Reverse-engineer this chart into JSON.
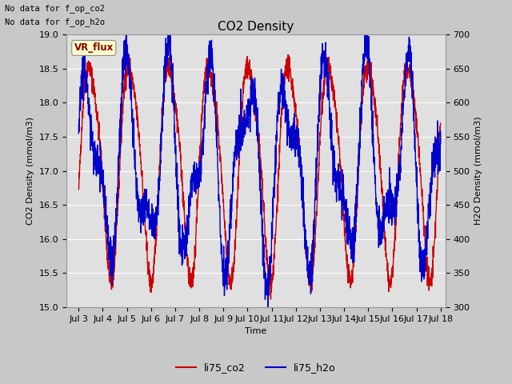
{
  "title": "CO2 Density",
  "xlabel": "Time",
  "ylabel_left": "CO2 Density (mmol/m3)",
  "ylabel_right": "H2O Density (mmol/m3)",
  "top_left_text_line1": "No data for f_op_co2",
  "top_left_text_line2": "No data for f_op_h2o",
  "legend_box_label": "VR_flux",
  "legend_entries": [
    "li75_co2",
    "li75_h2o"
  ],
  "co2_color": "#cc0000",
  "h2o_color": "#0000cc",
  "xtick_labels": [
    "Jul 3",
    "Jul 4",
    "Jul 5",
    "Jul 6",
    "Jul 7",
    "Jul 8",
    "Jul 9",
    "Jul 10",
    "Jul 11",
    "Jul 12",
    "Jul 13",
    "Jul 14",
    "Jul 15",
    "Jul 16",
    "Jul 17",
    "Jul 18"
  ],
  "xtick_positions": [
    3,
    4,
    5,
    6,
    7,
    8,
    9,
    10,
    11,
    12,
    13,
    14,
    15,
    16,
    17,
    18
  ],
  "xlim": [
    2.5,
    18.2
  ],
  "ylim_left": [
    15.0,
    19.0
  ],
  "ylim_right": [
    300,
    700
  ],
  "yticks_left": [
    15.0,
    15.5,
    16.0,
    16.5,
    17.0,
    17.5,
    18.0,
    18.5,
    19.0
  ],
  "yticks_right": [
    300,
    350,
    400,
    450,
    500,
    550,
    600,
    650,
    700
  ],
  "fig_bg": "#c8c8c8",
  "plot_bg": "#e0e0e0",
  "linewidth": 1.0
}
